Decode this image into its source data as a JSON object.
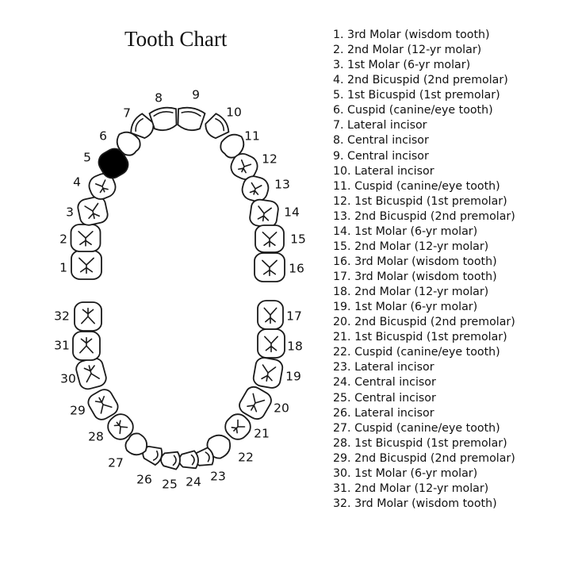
{
  "title": "Tooth Chart",
  "legend": [
    "1. 3rd Molar (wisdom tooth)",
    "2. 2nd Molar (12-yr molar)",
    "3. 1st Molar (6-yr molar)",
    "4. 2nd Bicuspid (2nd premolar)",
    "5. 1st Bicuspid (1st premolar)",
    "6. Cuspid (canine/eye tooth)",
    "7. Lateral incisor",
    "8. Central incisor",
    "9. Central incisor",
    "10. Lateral incisor",
    "11. Cuspid (canine/eye tooth)",
    "12. 1st Bicuspid (1st premolar)",
    "13. 2nd Bicuspid (2nd premolar)",
    "14. 1st Molar (6-yr molar)",
    "15. 2nd Molar (12-yr molar)",
    "16. 3rd Molar (wisdom tooth)",
    "17. 3rd Molar (wisdom tooth)",
    "18. 2nd Molar (12-yr molar)",
    "19. 1st Molar (6-yr molar)",
    "20. 2nd Bicuspid (2nd premolar)",
    "21. 1st Bicuspid (1st premolar)",
    "22. Cuspid (canine/eye tooth)",
    "23. Lateral incisor",
    "24. Central incisor",
    "25. Central incisor",
    "26. Lateral incisor",
    "27. Cuspid (canine/eye tooth)",
    "28. 1st Bicuspid (1st premolar)",
    "29. 2nd Bicuspid (2nd premolar)",
    "30. 1st Molar (6-yr molar)",
    "31. 2nd Molar (12-yr molar)",
    "32. 3rd Molar (wisdom tooth)"
  ],
  "tooth_numbers": [
    "1",
    "2",
    "3",
    "4",
    "5",
    "6",
    "7",
    "8",
    "9",
    "10",
    "11",
    "12",
    "13",
    "14",
    "15",
    "16",
    "17",
    "18",
    "19",
    "20",
    "21",
    "22",
    "23",
    "24",
    "25",
    "26",
    "27",
    "28",
    "29",
    "30",
    "31",
    "32"
  ],
  "marked_tooth": "5",
  "marked_color": "#000000"
}
